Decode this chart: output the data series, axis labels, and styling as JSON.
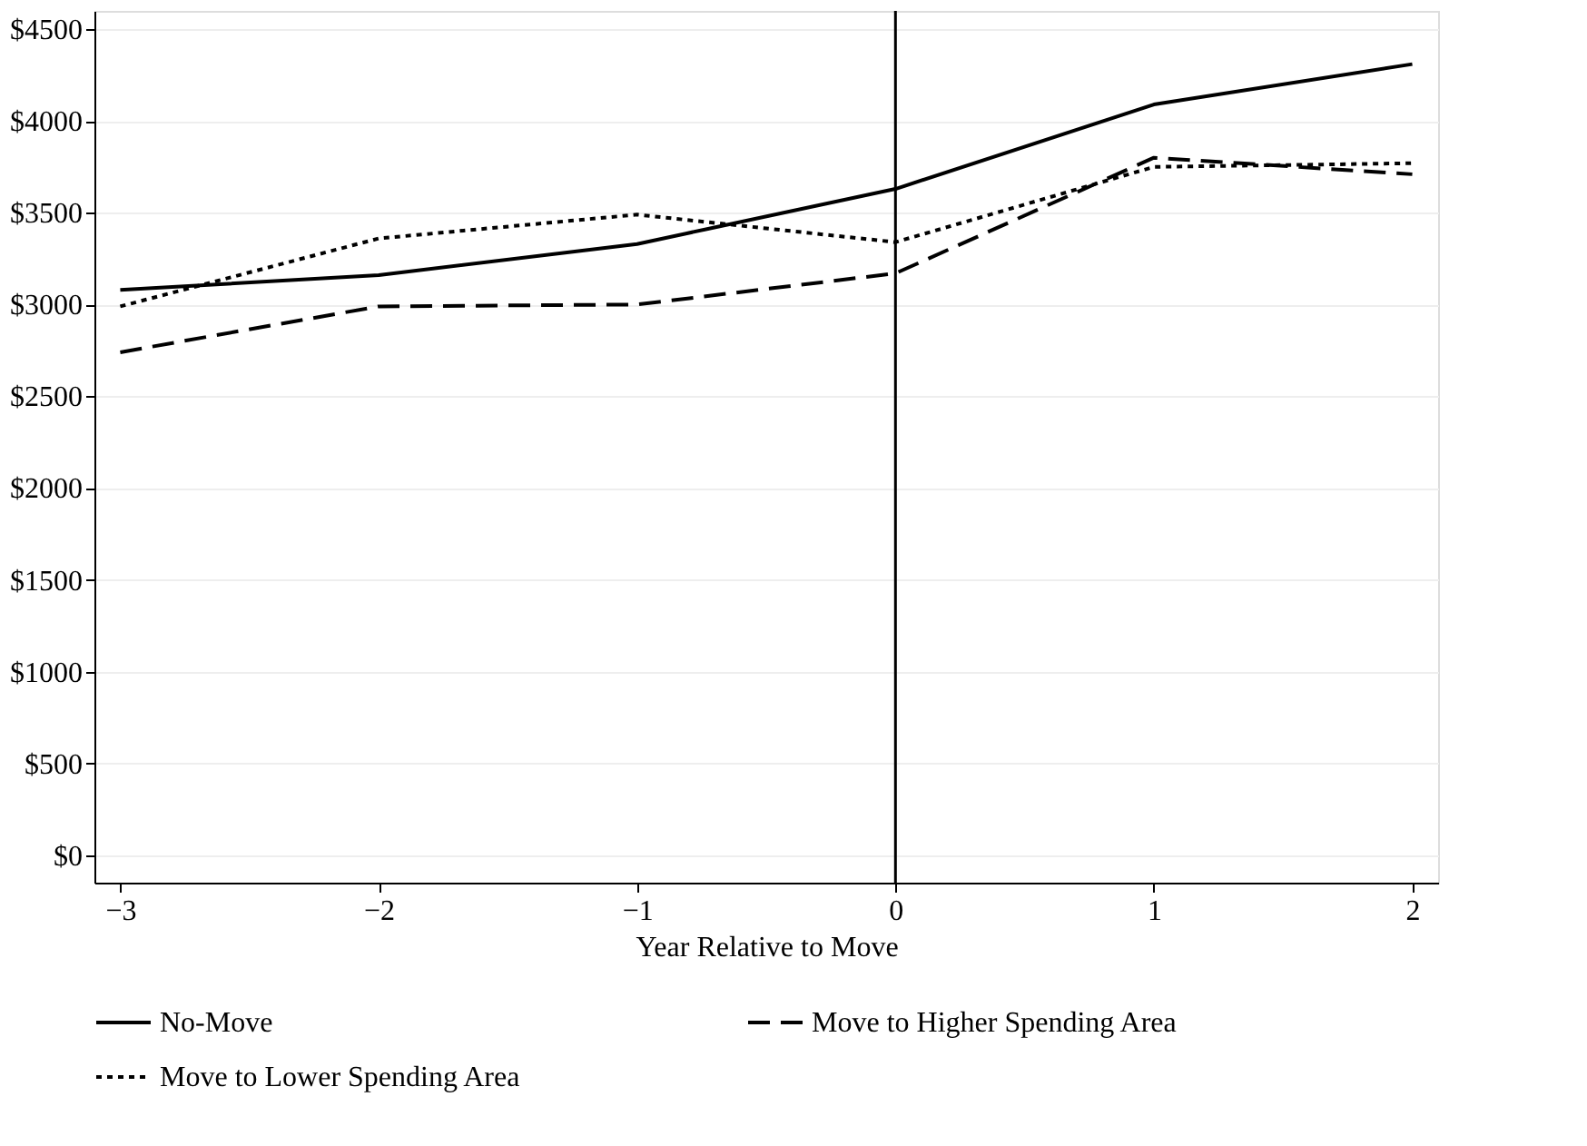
{
  "chart_data": {
    "type": "line",
    "xlabel": "Year Relative to Move",
    "x": [
      -3,
      -2,
      -1,
      0,
      1,
      2
    ],
    "xlim": [
      -3.1,
      2.1
    ],
    "xticks": [
      -3,
      -2,
      -1,
      0,
      1,
      2
    ],
    "ylim": [
      -150,
      4600
    ],
    "yticks": [
      {
        "value": 0,
        "label": "$0"
      },
      {
        "value": 500,
        "label": "$500"
      },
      {
        "value": 1000,
        "label": "$1000"
      },
      {
        "value": 1500,
        "label": "$1500"
      },
      {
        "value": 2000,
        "label": "$2000"
      },
      {
        "value": 2500,
        "label": "$2500"
      },
      {
        "value": 3000,
        "label": "$3000"
      },
      {
        "value": 3500,
        "label": "$3500"
      },
      {
        "value": 4000,
        "label": "$4000"
      },
      {
        "value": 4500,
        "label": "$4500"
      }
    ],
    "grid": "y",
    "legend": "bottom",
    "ref_lines": [
      {
        "axis": "x",
        "value": 0,
        "color": "#000000",
        "line_style": "solid"
      }
    ],
    "series": [
      {
        "name": "No-Move",
        "color": "#000000",
        "line_style": "solid",
        "values": [
          3080,
          3160,
          3330,
          3630,
          4090,
          4310
        ]
      },
      {
        "name": "Move to Higher Spending Area",
        "color": "#000000",
        "line_style": "dashed",
        "values": [
          2740,
          2990,
          3000,
          3170,
          3800,
          3710
        ]
      },
      {
        "name": "Move to Lower Spending Area",
        "color": "#000000",
        "line_style": "dotted",
        "values": [
          2990,
          3360,
          3490,
          3340,
          3750,
          3770
        ]
      }
    ]
  }
}
